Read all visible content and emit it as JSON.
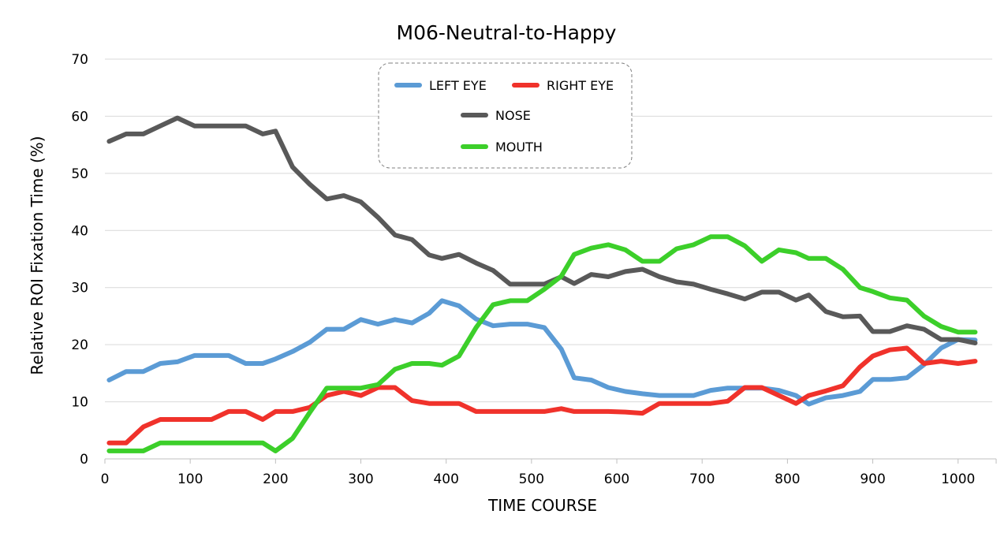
{
  "chart_data": {
    "type": "line",
    "title": "M06-Neutral-to-Happy",
    "xlabel": "TIME  COURSE",
    "ylabel": "Relative  ROI  Fixation  Time  (%)",
    "xlim": [
      0,
      1040
    ],
    "ylim": [
      0,
      70
    ],
    "xticks": [
      0,
      100,
      200,
      300,
      400,
      500,
      600,
      700,
      800,
      900,
      1000
    ],
    "yticks": [
      0,
      10,
      20,
      30,
      40,
      50,
      60,
      70
    ],
    "grid": true,
    "legend_position": "top-center",
    "x": [
      5,
      25,
      45,
      65,
      85,
      105,
      125,
      145,
      165,
      185,
      200,
      220,
      240,
      260,
      280,
      300,
      320,
      340,
      360,
      380,
      395,
      415,
      435,
      455,
      475,
      495,
      515,
      535,
      550,
      570,
      590,
      610,
      630,
      650,
      670,
      690,
      710,
      730,
      750,
      770,
      790,
      810,
      825,
      845,
      865,
      885,
      900,
      920,
      940,
      960,
      980,
      1000,
      1020
    ],
    "series": [
      {
        "name": "LEFT EYE",
        "color": "#5b9bd5",
        "values": [
          13.8,
          15.3,
          15.3,
          16.7,
          17.0,
          18.1,
          18.1,
          18.1,
          16.7,
          16.7,
          17.5,
          18.8,
          20.4,
          22.7,
          22.7,
          24.4,
          23.6,
          24.4,
          23.8,
          25.5,
          27.7,
          26.8,
          24.5,
          23.3,
          23.6,
          23.6,
          23.0,
          19.2,
          14.2,
          13.8,
          12.5,
          11.8,
          11.4,
          11.1,
          11.1,
          11.1,
          12.0,
          12.4,
          12.4,
          12.4,
          12.0,
          11.1,
          9.6,
          10.7,
          11.1,
          11.8,
          13.9,
          13.9,
          14.2,
          16.5,
          19.4,
          20.9,
          20.8
        ]
      },
      {
        "name": "RIGHT EYE",
        "color": "#f0322b",
        "values": [
          2.8,
          2.8,
          5.6,
          6.9,
          6.9,
          6.9,
          6.9,
          8.3,
          8.3,
          6.9,
          8.3,
          8.3,
          9.0,
          11.1,
          11.8,
          11.1,
          12.5,
          12.5,
          10.2,
          9.7,
          9.7,
          9.7,
          8.3,
          8.3,
          8.3,
          8.3,
          8.3,
          8.8,
          8.3,
          8.3,
          8.3,
          8.2,
          8.0,
          9.7,
          9.7,
          9.7,
          9.7,
          10.1,
          12.5,
          12.5,
          11.1,
          9.7,
          11.1,
          11.9,
          12.8,
          16.1,
          18.0,
          19.1,
          19.4,
          16.7,
          17.1,
          16.7,
          17.1
        ]
      },
      {
        "name": "NOSE",
        "color": "#595959",
        "values": [
          55.6,
          56.9,
          56.9,
          58.3,
          59.7,
          58.3,
          58.3,
          58.3,
          58.3,
          56.9,
          57.4,
          51.1,
          48.1,
          45.5,
          46.1,
          45.0,
          42.3,
          39.2,
          38.4,
          35.7,
          35.1,
          35.8,
          34.3,
          33.0,
          30.6,
          30.6,
          30.6,
          31.9,
          30.7,
          32.3,
          31.9,
          32.8,
          33.2,
          31.9,
          31.0,
          30.6,
          29.7,
          28.9,
          28.0,
          29.2,
          29.2,
          27.8,
          28.7,
          25.8,
          24.9,
          25.0,
          22.3,
          22.3,
          23.3,
          22.7,
          20.9,
          20.9,
          20.3
        ]
      },
      {
        "name": "MOUTH",
        "color": "#3ccf2a",
        "values": [
          1.4,
          1.4,
          1.4,
          2.8,
          2.8,
          2.8,
          2.8,
          2.8,
          2.8,
          2.8,
          1.4,
          3.6,
          8.1,
          12.4,
          12.4,
          12.4,
          13.0,
          15.7,
          16.7,
          16.7,
          16.4,
          18.0,
          23.0,
          27.0,
          27.7,
          27.7,
          29.7,
          32.0,
          35.8,
          36.9,
          37.5,
          36.6,
          34.6,
          34.6,
          36.8,
          37.5,
          38.9,
          38.9,
          37.3,
          34.6,
          36.6,
          36.1,
          35.1,
          35.1,
          33.2,
          30.0,
          29.3,
          28.2,
          27.8,
          25.0,
          23.2,
          22.2,
          22.2
        ]
      }
    ]
  }
}
